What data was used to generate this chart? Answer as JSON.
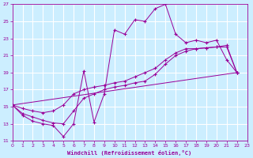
{
  "xlabel": "Windchill (Refroidissement éolien,°C)",
  "background_color": "#cceeff",
  "grid_color": "#ffffff",
  "line_color": "#990099",
  "xmin": 0,
  "xmax": 23,
  "ymin": 11,
  "ymax": 27,
  "yticks": [
    11,
    13,
    15,
    17,
    19,
    21,
    23,
    25,
    27
  ],
  "xticks": [
    0,
    1,
    2,
    3,
    4,
    5,
    6,
    7,
    8,
    9,
    10,
    11,
    12,
    13,
    14,
    15,
    16,
    17,
    18,
    19,
    20,
    21,
    22,
    23
  ],
  "curve1_x": [
    0,
    1,
    2,
    3,
    4,
    5,
    6,
    7,
    8,
    9,
    10,
    11,
    12,
    13,
    14,
    15,
    16,
    17,
    18,
    19,
    20,
    21,
    22
  ],
  "curve1_y": [
    15.2,
    14.0,
    13.3,
    13.0,
    12.8,
    11.5,
    13.0,
    19.2,
    13.2,
    16.5,
    24.0,
    23.5,
    25.2,
    25.0,
    26.5,
    27.0,
    23.5,
    22.5,
    22.8,
    22.5,
    22.8,
    20.5,
    19.0
  ],
  "curve2_x": [
    0,
    1,
    2,
    3,
    4,
    5,
    6,
    7,
    8,
    9,
    10,
    11,
    12,
    13,
    14,
    15,
    16,
    17,
    18,
    19,
    20,
    21,
    22
  ],
  "curve2_y": [
    15.2,
    14.8,
    14.5,
    14.3,
    14.5,
    15.2,
    16.5,
    17.0,
    17.3,
    17.5,
    17.8,
    18.0,
    18.5,
    19.0,
    19.5,
    20.5,
    21.3,
    21.8,
    21.8,
    21.9,
    22.0,
    22.2,
    19.0
  ],
  "curve3_x": [
    0,
    1,
    2,
    3,
    4,
    5,
    6,
    7,
    8,
    9,
    10,
    11,
    12,
    13,
    14,
    15,
    16,
    17,
    18,
    19,
    20,
    21,
    22
  ],
  "curve3_y": [
    15.2,
    14.2,
    13.8,
    13.4,
    13.1,
    13.0,
    14.5,
    16.0,
    16.5,
    17.0,
    17.3,
    17.5,
    17.8,
    18.0,
    18.8,
    20.0,
    21.0,
    21.5,
    21.8,
    21.9,
    22.0,
    22.0,
    19.0
  ],
  "line4_x": [
    0,
    22
  ],
  "line4_y": [
    15.2,
    19.0
  ]
}
